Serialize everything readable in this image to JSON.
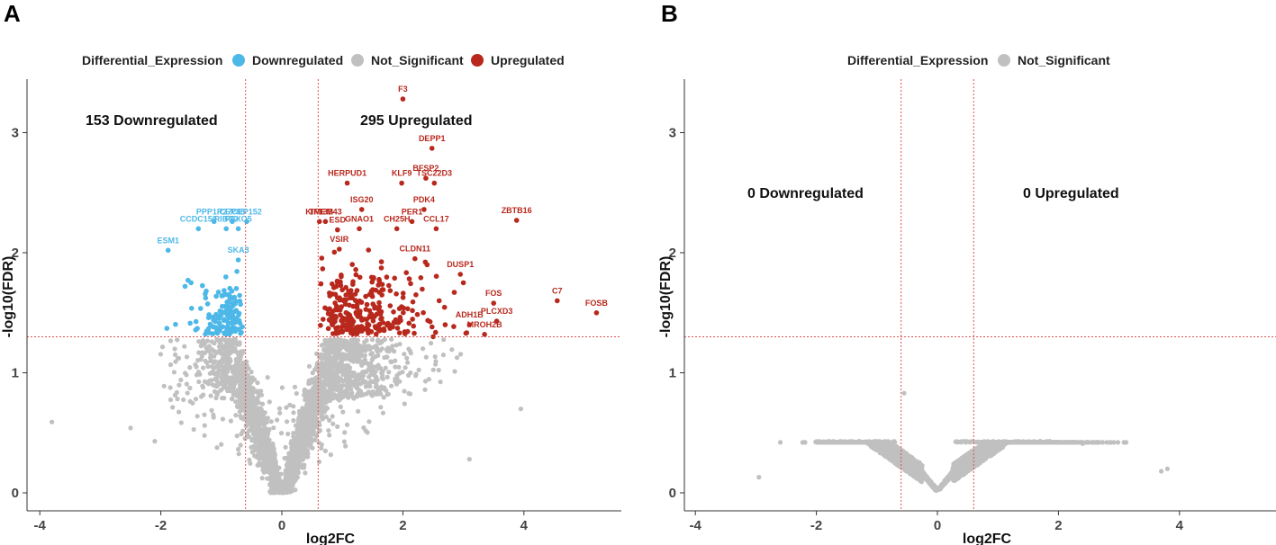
{
  "chart_data": [
    {
      "type": "scatter",
      "panel": "A",
      "legend": {
        "title": "Differential_Expression",
        "entries": [
          {
            "label": "Downregulated",
            "color": "#4db8e8"
          },
          {
            "label": "Not_Significant",
            "color": "#c0c0c0"
          },
          {
            "label": "Upregulated",
            "color": "#b8281c"
          }
        ]
      },
      "xlabel": "log2FC",
      "ylabel": "-log10(FDR)",
      "xlim": [
        -4.4,
        5.6
      ],
      "ylim": [
        -0.1,
        3.45
      ],
      "xticks": [
        "-4",
        "-2",
        "0",
        "2",
        "4"
      ],
      "yticks": [
        "0",
        "1",
        "2",
        "3"
      ],
      "fc_threshold": 0.6,
      "fdr_threshold": 1.3,
      "down_count_label": "153 Downregulated",
      "up_count_label": "295 Upregulated",
      "labeled_genes": [
        {
          "gene": "F3",
          "x": 2.0,
          "y": 3.28,
          "group": "Upregulated"
        },
        {
          "gene": "DEPP1",
          "x": 2.48,
          "y": 2.87,
          "group": "Upregulated"
        },
        {
          "gene": "BFSP2",
          "x": 2.38,
          "y": 2.62,
          "group": "Upregulated"
        },
        {
          "gene": "HERPUD1",
          "x": 1.08,
          "y": 2.58,
          "group": "Upregulated"
        },
        {
          "gene": "KLF9",
          "x": 1.98,
          "y": 2.58,
          "group": "Upregulated"
        },
        {
          "gene": "TSC22D3",
          "x": 2.52,
          "y": 2.58,
          "group": "Upregulated"
        },
        {
          "gene": "ISG20",
          "x": 1.32,
          "y": 2.36,
          "group": "Upregulated"
        },
        {
          "gene": "TMEM43",
          "x": 0.72,
          "y": 2.26,
          "group": "Upregulated"
        },
        {
          "gene": "PDK4",
          "x": 2.35,
          "y": 2.36,
          "group": "Upregulated"
        },
        {
          "gene": "ZBTB16",
          "x": 3.88,
          "y": 2.27,
          "group": "Upregulated"
        },
        {
          "gene": "KIF13B",
          "x": 0.62,
          "y": 2.26,
          "group": "Upregulated"
        },
        {
          "gene": "PER1",
          "x": 2.15,
          "y": 2.26,
          "group": "Upregulated"
        },
        {
          "gene": "ESD",
          "x": 0.92,
          "y": 2.19,
          "group": "Upregulated"
        },
        {
          "gene": "GNAO1",
          "x": 1.28,
          "y": 2.2,
          "group": "Upregulated"
        },
        {
          "gene": "CH25H",
          "x": 1.9,
          "y": 2.2,
          "group": "Upregulated"
        },
        {
          "gene": "CCL17",
          "x": 2.55,
          "y": 2.2,
          "group": "Upregulated"
        },
        {
          "gene": "VSIR",
          "x": 0.95,
          "y": 2.03,
          "group": "Upregulated"
        },
        {
          "gene": "CLDN11",
          "x": 2.2,
          "y": 1.95,
          "group": "Upregulated"
        },
        {
          "gene": "DUSP1",
          "x": 2.95,
          "y": 1.82,
          "group": "Upregulated"
        },
        {
          "gene": "FOS",
          "x": 3.5,
          "y": 1.58,
          "group": "Upregulated"
        },
        {
          "gene": "C7",
          "x": 4.55,
          "y": 1.6,
          "group": "Upregulated"
        },
        {
          "gene": "FOSB",
          "x": 5.2,
          "y": 1.5,
          "group": "Upregulated"
        },
        {
          "gene": "ADH1B",
          "x": 3.1,
          "y": 1.4,
          "group": "Upregulated"
        },
        {
          "gene": "PLCXD3",
          "x": 3.55,
          "y": 1.43,
          "group": "Upregulated"
        },
        {
          "gene": "MROH2B",
          "x": 3.35,
          "y": 1.32,
          "group": "Upregulated"
        },
        {
          "gene": "PPP1R27",
          "x": -1.12,
          "y": 2.26,
          "group": "Downregulated"
        },
        {
          "gene": "CEP85",
          "x": -0.82,
          "y": 2.26,
          "group": "Downregulated"
        },
        {
          "gene": "CEP152",
          "x": -0.58,
          "y": 2.26,
          "group": "Downregulated"
        },
        {
          "gene": "CCDC150",
          "x": -1.38,
          "y": 2.2,
          "group": "Downregulated"
        },
        {
          "gene": "RIBC2",
          "x": -0.92,
          "y": 2.2,
          "group": "Downregulated"
        },
        {
          "gene": "FBXO5",
          "x": -0.72,
          "y": 2.2,
          "group": "Downregulated"
        },
        {
          "gene": "ESM1",
          "x": -1.88,
          "y": 2.02,
          "group": "Downregulated"
        },
        {
          "gene": "SKA3",
          "x": -0.72,
          "y": 1.94,
          "group": "Downregulated"
        }
      ]
    },
    {
      "type": "scatter",
      "panel": "B",
      "legend": {
        "title": "Differential_Expression",
        "entries": [
          {
            "label": "Not_Significant",
            "color": "#c0c0c0"
          }
        ]
      },
      "xlabel": "log2FC",
      "ylabel": "-log10(FDR)",
      "xlim": [
        -4.4,
        5.6
      ],
      "ylim": [
        -0.1,
        3.45
      ],
      "xticks": [
        "-4",
        "-2",
        "0",
        "2",
        "4"
      ],
      "yticks": [
        "0",
        "1",
        "2",
        "3"
      ],
      "fc_threshold": 0.6,
      "fdr_threshold": 1.3,
      "down_count_label": "0 Downregulated",
      "up_count_label": "0 Upregulated"
    }
  ]
}
